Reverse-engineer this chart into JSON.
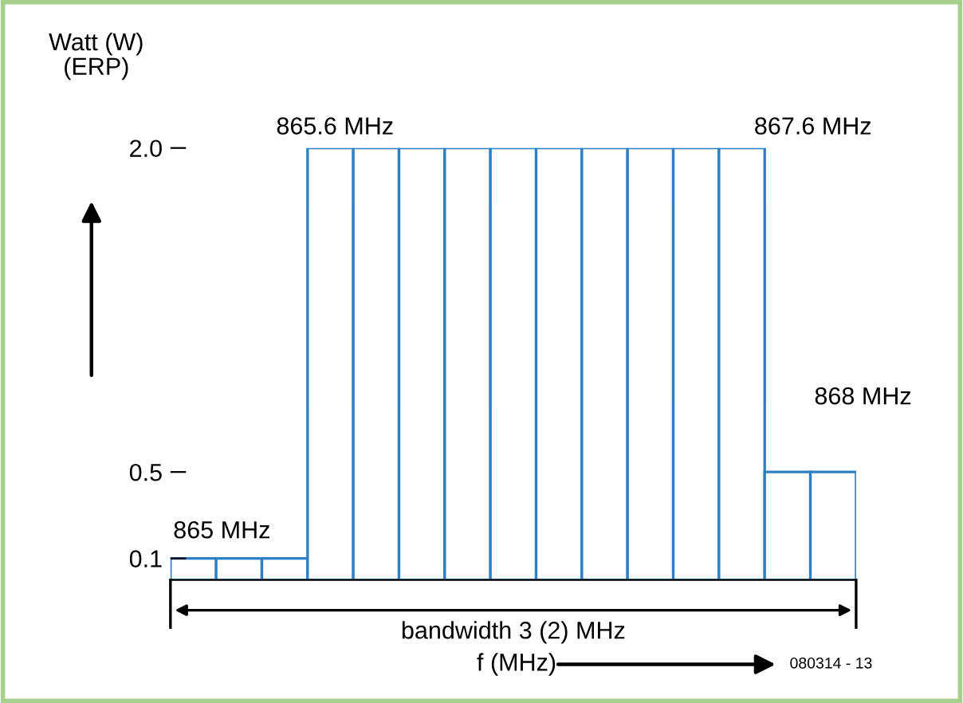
{
  "chart_data": {
    "type": "bar",
    "ylabel": "Watt (W)\n(ERP)",
    "xlabel": "f (MHz)",
    "categories": [
      null,
      null,
      null,
      null,
      null,
      null,
      null,
      null,
      null,
      null,
      null,
      null,
      null,
      null,
      null
    ],
    "values": [
      0.1,
      0.1,
      0.1,
      2.0,
      2.0,
      2.0,
      2.0,
      2.0,
      2.0,
      2.0,
      2.0,
      2.0,
      2.0,
      0.5,
      0.5
    ],
    "color": "#2f7fc4",
    "ylim": [
      0,
      2.0
    ],
    "yticks": [
      0.1,
      0.5,
      {
        "value": 2,
        "label": "2.0"
      }
    ],
    "tick_labels": "y",
    "annotations": [
      "865 MHz",
      "865.6 MHz",
      "867.6 MHz",
      "868 MHz",
      "bandwidth 3 (2) MHz",
      "080314 - 13"
    ]
  }
}
